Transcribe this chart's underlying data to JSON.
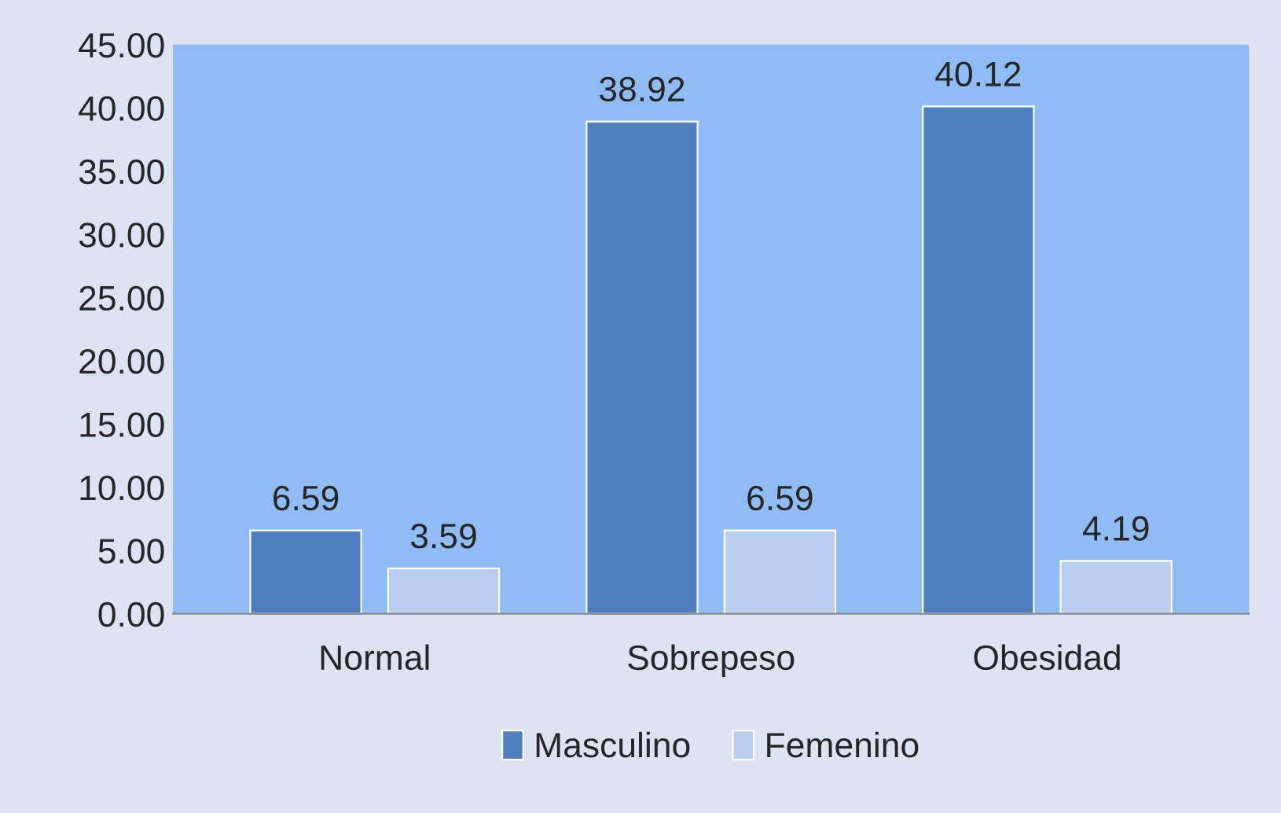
{
  "chart_data": {
    "type": "bar",
    "categories": [
      "Normal",
      "Sobrepeso",
      "Obesidad"
    ],
    "series": [
      {
        "name": "Masculino",
        "color": "#4f7fc0",
        "values": [
          6.59,
          38.92,
          40.12
        ]
      },
      {
        "name": "Femenino",
        "color": "#b9cdf0",
        "values": [
          3.59,
          6.59,
          4.19
        ]
      }
    ],
    "ylim": [
      0,
      45
    ],
    "yticks": [
      {
        "value": 0,
        "label": "0.00"
      },
      {
        "value": 5,
        "label": "5.00"
      },
      {
        "value": 10,
        "label": "10.00"
      },
      {
        "value": 15,
        "label": "15.00"
      },
      {
        "value": 20,
        "label": "20.00"
      },
      {
        "value": 25,
        "label": "25.00"
      },
      {
        "value": 30,
        "label": "30.00"
      },
      {
        "value": 35,
        "label": "35.00"
      },
      {
        "value": 40,
        "label": "40.00"
      },
      {
        "value": 45,
        "label": "45.00"
      }
    ],
    "data_labels": true,
    "legend": "bottom",
    "grid": false
  }
}
